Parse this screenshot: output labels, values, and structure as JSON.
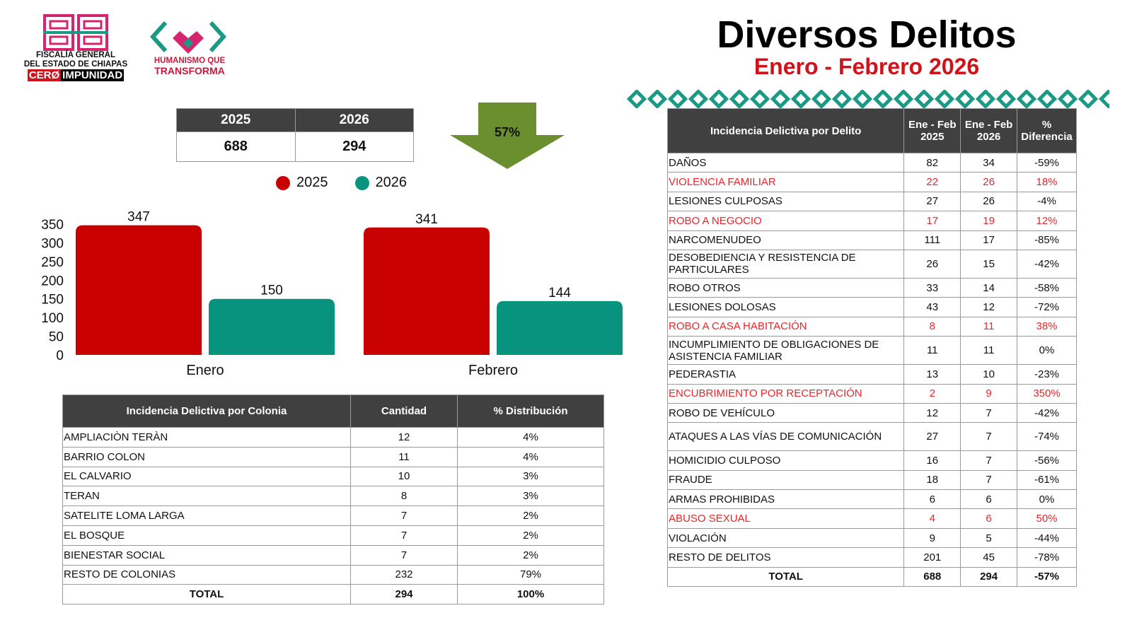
{
  "header": {
    "title": "Diversos Delitos",
    "subtitle": "Enero - Febrero 2026"
  },
  "logos": {
    "fiscalia": {
      "line1": "FISCALÍA GENERAL",
      "line2": "DEL ESTADO DE CHIAPAS",
      "tag_red": "CERØ",
      "tag_black": "IMPUNIDAD"
    },
    "humanismo": {
      "line1": "HUMANISMO QUE",
      "line2": "TRANSFORMA"
    }
  },
  "summary": {
    "headers": [
      "2025",
      "2026"
    ],
    "values": [
      "688",
      "294"
    ],
    "change": "57%",
    "change_direction": "down"
  },
  "colors": {
    "series_2025": "#c80000",
    "series_2026": "#08937f",
    "header_bg": "#404040",
    "alert_red": "#e8262b",
    "arrow": "#6b8e2f",
    "title_red": "#d0131a"
  },
  "chart_data": {
    "type": "bar",
    "categories": [
      "Enero",
      "Febrero"
    ],
    "series": [
      {
        "name": "2025",
        "values": [
          347,
          341
        ]
      },
      {
        "name": "2026",
        "values": [
          150,
          144
        ]
      }
    ],
    "ylim": [
      0,
      350
    ],
    "yticks": [
      0,
      50,
      100,
      150,
      200,
      250,
      300,
      350
    ],
    "legend": "top",
    "grid": false
  },
  "colonia_table": {
    "headers": [
      "Incidencia Delictiva por Colonia",
      "Cantidad",
      "% Distribución"
    ],
    "rows": [
      [
        "AMPLIACIÒN TERÀN",
        "12",
        "4%"
      ],
      [
        "BARRIO COLON",
        "11",
        "4%"
      ],
      [
        "EL CALVARIO",
        "10",
        "3%"
      ],
      [
        "TERAN",
        "8",
        "3%"
      ],
      [
        "SATELITE LOMA LARGA",
        "7",
        "2%"
      ],
      [
        "EL BOSQUE",
        "7",
        "2%"
      ],
      [
        "BIENESTAR SOCIAL",
        "7",
        "2%"
      ],
      [
        "RESTO DE COLONIAS",
        "232",
        "79%"
      ]
    ],
    "total": [
      "TOTAL",
      "294",
      "100%"
    ]
  },
  "delito_table": {
    "headers": [
      "Incidencia Delictiva por Delito",
      "Ene - Feb 2025",
      "Ene - Feb 2026",
      "% Diferencia"
    ],
    "rows": [
      {
        "cells": [
          "DAÑOS",
          "82",
          "34",
          "-59%"
        ],
        "highlight": false
      },
      {
        "cells": [
          "VIOLENCIA FAMILIAR",
          "22",
          "26",
          "18%"
        ],
        "highlight": true
      },
      {
        "cells": [
          "LESIONES CULPOSAS",
          "27",
          "26",
          "-4%"
        ],
        "highlight": false
      },
      {
        "cells": [
          "ROBO A NEGOCIO",
          "17",
          "19",
          "12%"
        ],
        "highlight": true
      },
      {
        "cells": [
          "NARCOMENUDEO",
          "111",
          "17",
          "-85%"
        ],
        "highlight": false
      },
      {
        "cells": [
          "DESOBEDIENCIA Y RESISTENCIA DE PARTICULARES",
          "26",
          "15",
          "-42%"
        ],
        "highlight": false
      },
      {
        "cells": [
          "ROBO OTROS",
          "33",
          "14",
          "-58%"
        ],
        "highlight": false
      },
      {
        "cells": [
          "LESIONES DOLOSAS",
          "43",
          "12",
          "-72%"
        ],
        "highlight": false
      },
      {
        "cells": [
          "ROBO A CASA HABITACIÓN",
          "8",
          "11",
          "38%"
        ],
        "highlight": true
      },
      {
        "cells": [
          "INCUMPLIMIENTO DE OBLIGACIONES DE ASISTENCIA FAMILIAR",
          "11",
          "11",
          "0%"
        ],
        "highlight": false
      },
      {
        "cells": [
          "PEDERASTIA",
          "13",
          "10",
          "-23%"
        ],
        "highlight": false
      },
      {
        "cells": [
          "ENCUBRIMIENTO POR RECEPTACIÓN",
          "2",
          "9",
          "350%"
        ],
        "highlight": true
      },
      {
        "cells": [
          "ROBO DE VEHÍCULO",
          "12",
          "7",
          "-42%"
        ],
        "highlight": false
      },
      {
        "cells": [
          "ATAQUES A LAS VÍAS DE COMUNICACIÓN",
          "27",
          "7",
          "-74%"
        ],
        "highlight": false
      },
      {
        "cells": [
          "HOMICIDIO CULPOSO",
          "16",
          "7",
          "-56%"
        ],
        "highlight": false
      },
      {
        "cells": [
          "FRAUDE",
          "18",
          "7",
          "-61%"
        ],
        "highlight": false
      },
      {
        "cells": [
          "ARMAS PROHIBIDAS",
          "6",
          "6",
          "0%"
        ],
        "highlight": false
      },
      {
        "cells": [
          "ABUSO SEXUAL",
          "4",
          "6",
          "50%"
        ],
        "highlight": true
      },
      {
        "cells": [
          "VIOLACIÓN",
          "9",
          "5",
          "-44%"
        ],
        "highlight": false
      },
      {
        "cells": [
          "RESTO DE DELITOS",
          "201",
          "45",
          "-78%"
        ],
        "highlight": false
      }
    ],
    "total": [
      "TOTAL",
      "688",
      "294",
      "-57%"
    ]
  }
}
